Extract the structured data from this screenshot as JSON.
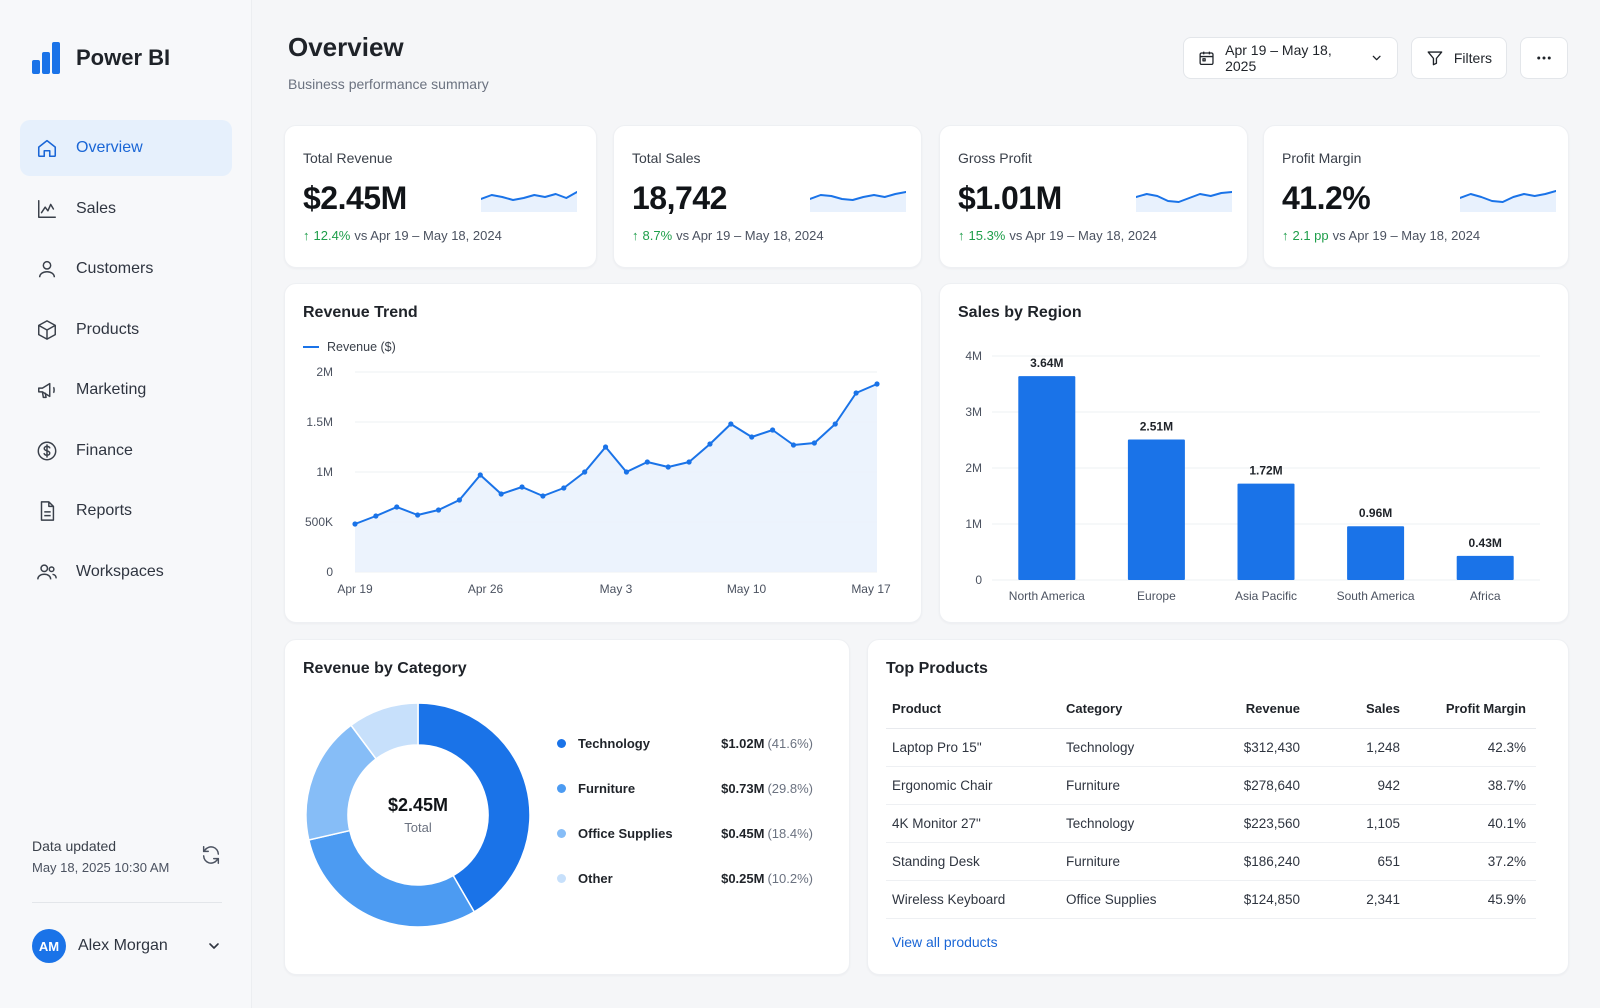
{
  "app": {
    "name": "Power BI"
  },
  "sidebar": {
    "items": [
      {
        "label": "Overview",
        "icon": "home-icon",
        "active": true
      },
      {
        "label": "Sales",
        "icon": "chart-icon"
      },
      {
        "label": "Customers",
        "icon": "user-icon"
      },
      {
        "label": "Products",
        "icon": "box-icon"
      },
      {
        "label": "Marketing",
        "icon": "megaphone-icon"
      },
      {
        "label": "Finance",
        "icon": "dollar-icon"
      },
      {
        "label": "Reports",
        "icon": "document-icon"
      },
      {
        "label": "Workspaces",
        "icon": "users-icon"
      }
    ],
    "data_updated_label": "Data updated",
    "data_updated_time": "May 18, 2025 10:30 AM",
    "user": {
      "initials": "AM",
      "name": "Alex Morgan"
    }
  },
  "header": {
    "title": "Overview",
    "subtitle": "Business performance summary",
    "date_range": "Apr 19 – May 18, 2025",
    "filters_label": "Filters"
  },
  "kpis": [
    {
      "label": "Total Revenue",
      "value": "$2.45M",
      "delta": "12.4%",
      "compare": "vs Apr 19 – May 18, 2024",
      "spark": [
        0.55,
        0.35,
        0.45,
        0.6,
        0.5,
        0.35,
        0.45,
        0.3,
        0.5,
        0.2
      ]
    },
    {
      "label": "Total Sales",
      "value": "18,742",
      "delta": "8.7%",
      "compare": "vs Apr 19 – May 18, 2024",
      "spark": [
        0.55,
        0.35,
        0.4,
        0.55,
        0.6,
        0.45,
        0.35,
        0.45,
        0.3,
        0.2
      ]
    },
    {
      "label": "Gross Profit",
      "value": "$1.01M",
      "delta": "15.3%",
      "compare": "vs Apr 19 – May 18, 2024",
      "spark": [
        0.45,
        0.3,
        0.4,
        0.65,
        0.7,
        0.5,
        0.3,
        0.4,
        0.25,
        0.2
      ]
    },
    {
      "label": "Profit Margin",
      "value": "41.2%",
      "delta": "2.1 pp",
      "compare": "vs Apr 19 – May 18, 2024",
      "spark": [
        0.5,
        0.3,
        0.45,
        0.65,
        0.7,
        0.45,
        0.3,
        0.4,
        0.3,
        0.15
      ]
    }
  ],
  "chart_data": [
    {
      "type": "area",
      "title": "Revenue Trend",
      "legend": "Revenue ($)",
      "x_ticks": [
        "Apr 19",
        "Apr 26",
        "May 3",
        "May 10",
        "May 17"
      ],
      "y_ticks": [
        "0",
        "500K",
        "1M",
        "1.5M",
        "2M"
      ],
      "ylim": [
        0,
        2000000
      ],
      "values": [
        480000,
        560000,
        650000,
        570000,
        620000,
        720000,
        970000,
        780000,
        850000,
        760000,
        840000,
        1000000,
        1250000,
        1000000,
        1100000,
        1050000,
        1100000,
        1280000,
        1480000,
        1350000,
        1420000,
        1270000,
        1290000,
        1480000,
        1790000,
        1880000
      ]
    },
    {
      "type": "bar",
      "title": "Sales by Region",
      "categories": [
        "North America",
        "Europe",
        "Asia Pacific",
        "South America",
        "Africa"
      ],
      "values": [
        3.64,
        2.51,
        1.72,
        0.96,
        0.43
      ],
      "labels": [
        "3.64M",
        "2.51M",
        "1.72M",
        "0.96M",
        "0.43M"
      ],
      "y_ticks": [
        "0",
        "1M",
        "2M",
        "3M",
        "4M"
      ],
      "ylim": [
        0,
        4
      ],
      "color": "#1a73e8"
    },
    {
      "type": "pie",
      "title": "Revenue by Category",
      "center_value": "$2.45M",
      "center_label": "Total",
      "slices": [
        {
          "name": "Technology",
          "value": 1.02,
          "amount": "$1.02M",
          "pct": "(41.6%)",
          "color": "#1a73e8"
        },
        {
          "name": "Furniture",
          "value": 0.73,
          "amount": "$0.73M",
          "pct": "(29.8%)",
          "color": "#4c9bf2"
        },
        {
          "name": "Office Supplies",
          "value": 0.45,
          "amount": "$0.45M",
          "pct": "(18.4%)",
          "color": "#86bdf7"
        },
        {
          "name": "Other",
          "value": 0.25,
          "amount": "$0.25M",
          "pct": "(10.2%)",
          "color": "#c7e0fb"
        }
      ]
    }
  ],
  "top_products": {
    "title": "Top Products",
    "columns": [
      "Product",
      "Category",
      "Revenue",
      "Sales",
      "Profit Margin"
    ],
    "rows": [
      [
        "Laptop Pro 15\"",
        "Technology",
        "$312,430",
        "1,248",
        "42.3%"
      ],
      [
        "Ergonomic Chair",
        "Furniture",
        "$278,640",
        "942",
        "38.7%"
      ],
      [
        "4K Monitor 27\"",
        "Technology",
        "$223,560",
        "1,105",
        "40.1%"
      ],
      [
        "Standing Desk",
        "Furniture",
        "$186,240",
        "651",
        "37.2%"
      ],
      [
        "Wireless Keyboard",
        "Office Supplies",
        "$124,850",
        "2,341",
        "45.9%"
      ]
    ],
    "view_all": "View all products"
  }
}
